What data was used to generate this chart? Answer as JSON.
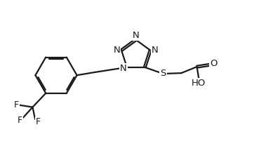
{
  "background_color": "#ffffff",
  "line_color": "#1a1a1a",
  "bond_width": 1.6,
  "font_size": 9.5,
  "fig_width": 3.62,
  "fig_height": 2.18,
  "dpi": 100,
  "xlim": [
    0,
    10
  ],
  "ylim": [
    0,
    6
  ]
}
